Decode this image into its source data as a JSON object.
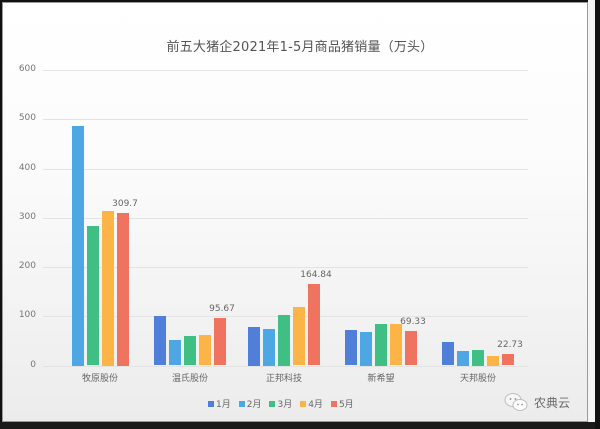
{
  "chart_data": {
    "type": "bar",
    "title": "前五大猪企2021年1-5月商品猪销量（万头）",
    "xlabel": "",
    "ylabel": "",
    "ylim": [
      0,
      600
    ],
    "yticks": [
      0,
      100,
      200,
      300,
      400,
      500,
      600
    ],
    "grid": true,
    "legend_position": "bottom",
    "categories": [
      "牧原股份",
      "温氏股份",
      "正邦科技",
      "新希望",
      "天邦股份"
    ],
    "series": [
      {
        "name": "1月",
        "color": "#4f7fd9",
        "values": [
          null,
          100,
          79,
          72,
          47
        ]
      },
      {
        "name": "2月",
        "color": "#4da7e3",
        "values": [
          487,
          51,
          75,
          69,
          30
        ]
      },
      {
        "name": "3月",
        "color": "#3fbf84",
        "values": [
          283,
          59,
          103,
          85,
          32
        ]
      },
      {
        "name": "4月",
        "color": "#fbb445",
        "values": [
          314,
          61,
          118,
          84,
          20
        ]
      },
      {
        "name": "5月",
        "color": "#f0735f",
        "values": [
          309.7,
          95.67,
          164.84,
          69.33,
          22.73
        ]
      }
    ],
    "data_labels": [
      {
        "category": "牧原股份",
        "series": "5月",
        "text": "309.7"
      },
      {
        "category": "温氏股份",
        "series": "5月",
        "text": "95.67"
      },
      {
        "category": "正邦科技",
        "series": "5月",
        "text": "164.84"
      },
      {
        "category": "新希望",
        "series": "5月",
        "text": "69.33"
      },
      {
        "category": "天邦股份",
        "series": "5月",
        "text": "22.73"
      }
    ]
  },
  "watermark": {
    "icon": "wechat-icon",
    "text": "农典云"
  }
}
